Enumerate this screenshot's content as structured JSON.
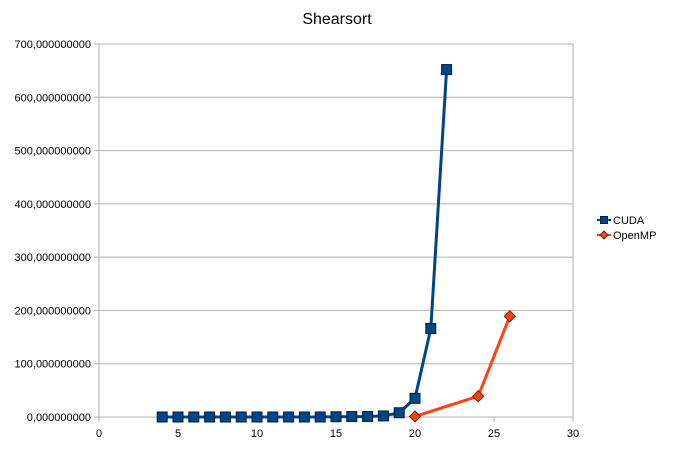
{
  "chart_data": {
    "type": "line",
    "title": "Shearsort",
    "xlabel": "",
    "ylabel": "",
    "xlim": [
      0,
      30
    ],
    "ylim": [
      0,
      700
    ],
    "x_ticks": [
      0,
      5,
      10,
      15,
      20,
      25,
      30
    ],
    "y_ticks": [
      0,
      100,
      200,
      300,
      400,
      500,
      600,
      700
    ],
    "y_tick_labels": [
      "0,000000000",
      "100,000000000",
      "200,000000000",
      "300,000000000",
      "400,000000000",
      "500,000000000",
      "600,000000000",
      "700,000000000"
    ],
    "grid": "horizontal",
    "legend_position": "right",
    "series": [
      {
        "name": "CUDA",
        "color": "#004586",
        "marker": "square",
        "x": [
          4,
          5,
          6,
          7,
          8,
          9,
          10,
          11,
          12,
          13,
          14,
          15,
          16,
          17,
          18,
          19,
          20,
          21,
          22
        ],
        "y": [
          0,
          0,
          0,
          0,
          0,
          0,
          0,
          0,
          0,
          0,
          0,
          0.5,
          0.8,
          1,
          2,
          8,
          35,
          166,
          652
        ]
      },
      {
        "name": "OpenMP",
        "color": "#ff420e",
        "marker": "diamond",
        "x": [
          20,
          24,
          26
        ],
        "y": [
          1,
          39,
          189
        ]
      }
    ]
  }
}
